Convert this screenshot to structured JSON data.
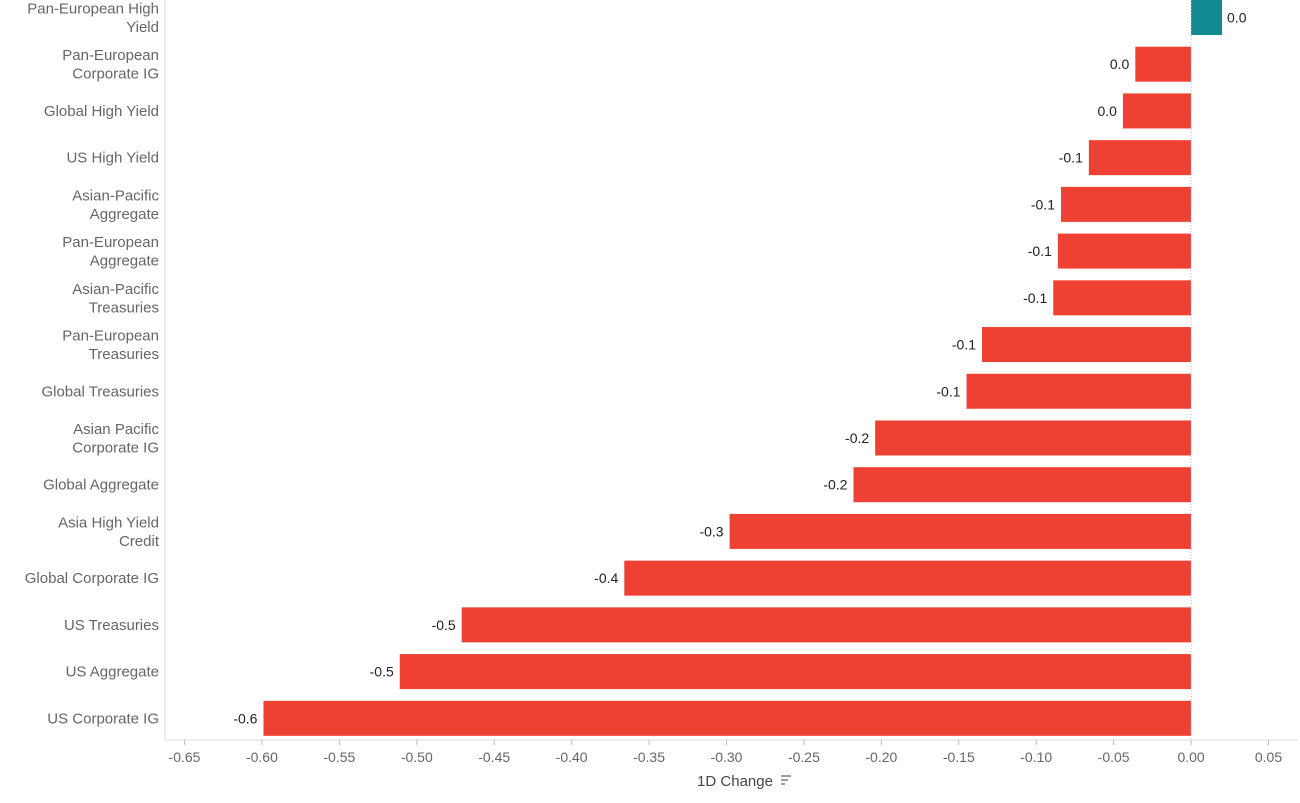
{
  "chart_data": {
    "type": "bar",
    "orientation": "horizontal",
    "categories": [
      "Pan-European High Yield",
      "Pan-European Corporate IG",
      "Global High Yield",
      "US High Yield",
      "Asian-Pacific Aggregate",
      "Pan-European Aggregate",
      "Asian-Pacific Treasuries",
      "Pan-European Treasuries",
      "Global Treasuries",
      "Asian Pacific Corporate IG",
      "Global Aggregate",
      "Asia High Yield Credit",
      "Global Corporate IG",
      "US Treasuries",
      "US Aggregate",
      "US Corporate IG"
    ],
    "values": [
      0.02,
      -0.036,
      -0.044,
      -0.066,
      -0.084,
      -0.086,
      -0.089,
      -0.135,
      -0.145,
      -0.204,
      -0.218,
      -0.298,
      -0.366,
      -0.471,
      -0.511,
      -0.599
    ],
    "data_labels": [
      "0.0",
      "0.0",
      "0.0",
      "-0.1",
      "-0.1",
      "-0.1",
      "-0.1",
      "-0.1",
      "-0.1",
      "-0.2",
      "-0.2",
      "-0.3",
      "-0.4",
      "-0.5",
      "-0.5",
      "-0.6"
    ],
    "xlim": [
      -0.65,
      0.05
    ],
    "xticks": [
      -0.65,
      -0.6,
      -0.55,
      -0.5,
      -0.45,
      -0.4,
      -0.35,
      -0.3,
      -0.25,
      -0.2,
      -0.15,
      -0.1,
      -0.05,
      0.0,
      0.05
    ],
    "xtick_labels": [
      "-0.65",
      "-0.60",
      "-0.55",
      "-0.50",
      "-0.45",
      "-0.40",
      "-0.35",
      "-0.30",
      "-0.25",
      "-0.20",
      "-0.15",
      "-0.10",
      "-0.05",
      "0.00",
      "0.05"
    ],
    "xlabel": "1D Change",
    "ylabel": "",
    "title": "",
    "grid": false,
    "legend": "none",
    "colors": {
      "positive": "#138A91",
      "negative": "#EF4133",
      "zero_line": "#BBBBBB",
      "axis": "#DDDDDD"
    },
    "icons": {
      "sort": "sort-descending-icon"
    }
  }
}
